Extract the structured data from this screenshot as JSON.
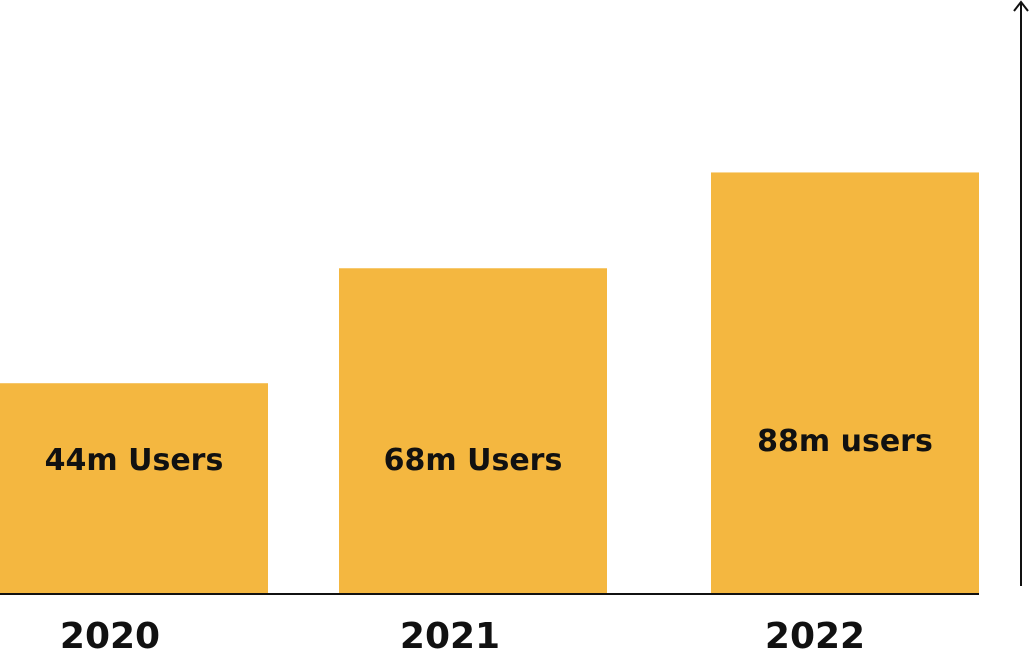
{
  "chart_data": {
    "type": "bar",
    "categories": [
      "2020",
      "2021",
      "2022"
    ],
    "values": [
      44,
      68,
      88
    ],
    "data_labels": [
      "44m Users",
      "68m Users",
      "88m users"
    ],
    "title": "",
    "xlabel": "",
    "ylabel": "",
    "ylim": [
      0,
      124
    ],
    "grid": false,
    "legend": "none",
    "colors": {
      "bar": "#f4b740",
      "axis": "#111111",
      "text": "#111111"
    }
  }
}
